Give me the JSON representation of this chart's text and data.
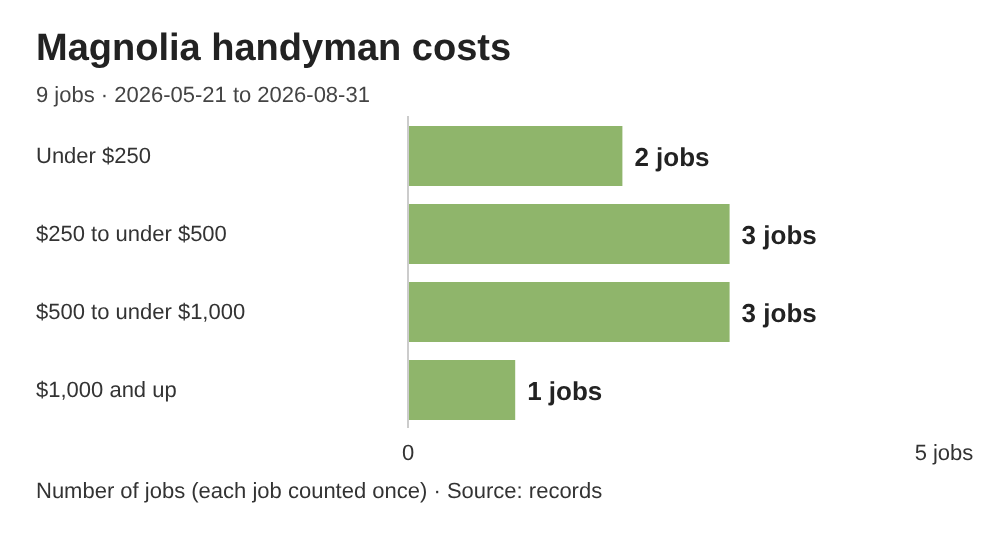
{
  "chart_data": {
    "type": "bar",
    "orientation": "horizontal",
    "title": "Magnolia handyman costs",
    "subtitle": "9 jobs · 2026-05-21 to 2026-08-31",
    "categories": [
      "Under $250",
      "$250 to under $500",
      "$500 to under $1,000",
      "$1,000 and up"
    ],
    "values": [
      2,
      3,
      3,
      1
    ],
    "color": "#8fb56b",
    "value_labels": [
      "2 jobs",
      "3 jobs",
      "3 jobs",
      "1 jobs"
    ],
    "xlim": [
      0,
      5
    ],
    "xticks": [
      0,
      {
        "value": 5,
        "label": "5 jobs"
      }
    ],
    "annotations": [
      "Number of jobs (each job counted once) · Source: records"
    ]
  }
}
